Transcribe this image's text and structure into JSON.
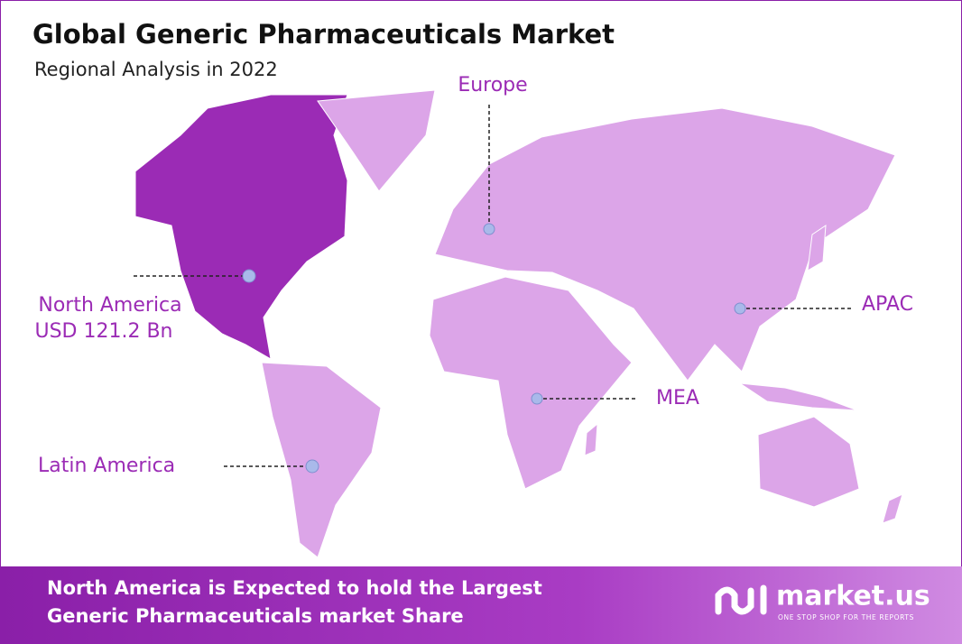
{
  "header": {
    "title": "Global Generic Pharmaceuticals Market",
    "subtitle": "Regional Analysis in 2022"
  },
  "regions": [
    {
      "name": "North America",
      "value": "USD 121.2 Bn"
    },
    {
      "name": "Europe"
    },
    {
      "name": "APAC"
    },
    {
      "name": "MEA"
    },
    {
      "name": "Latin America"
    }
  ],
  "footer": {
    "lines": [
      "North America is Expected to hold the Largest",
      "Generic Pharmaceuticals market Share"
    ],
    "logo": "market.us",
    "tagline": "ONE STOP SHOP FOR THE REPORTS"
  }
}
